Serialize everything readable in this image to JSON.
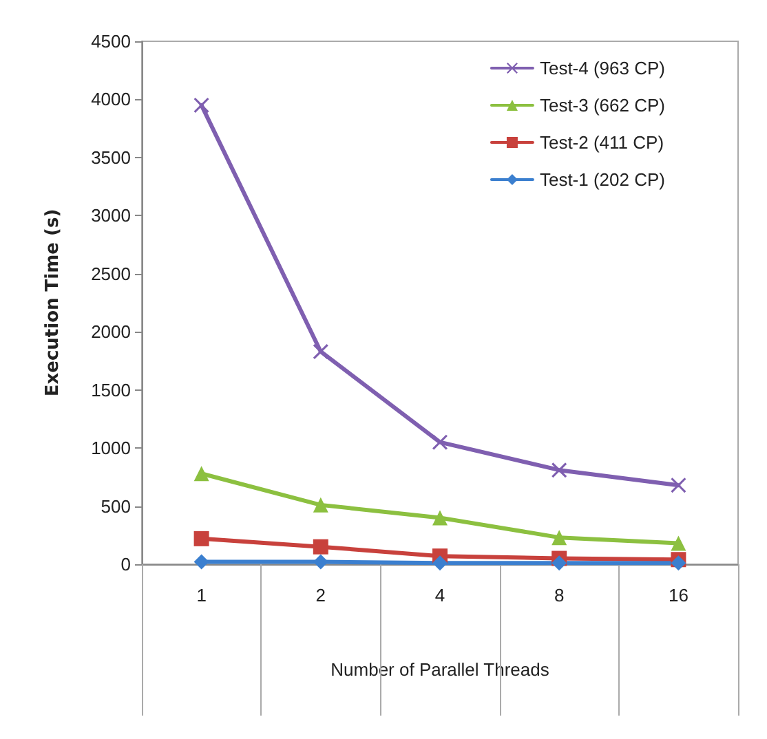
{
  "chart_data": {
    "type": "line",
    "xlabel": "Number of Parallel Threads",
    "ylabel": "Execution Time (s)",
    "categories": [
      "1",
      "2",
      "4",
      "8",
      "16"
    ],
    "ylim": [
      0,
      4500
    ],
    "yticks": [
      0,
      500,
      1000,
      1500,
      2000,
      2500,
      3000,
      3500,
      4000,
      4500
    ],
    "grid": false,
    "legend": "top right",
    "line_style": "solid",
    "series": [
      {
        "name": "Test-4 (963 CP)",
        "color": "#7f5fb0",
        "marker": "cross",
        "values": [
          3950,
          1830,
          1050,
          810,
          680
        ]
      },
      {
        "name": "Test-3 (662 CP)",
        "color": "#8cc040",
        "marker": "triangle",
        "values": [
          780,
          510,
          400,
          230,
          180
        ]
      },
      {
        "name": "Test-2 (411 CP)",
        "color": "#c8413c",
        "marker": "square",
        "values": [
          220,
          150,
          70,
          50,
          40
        ]
      },
      {
        "name": "Test-1 (202 CP)",
        "color": "#3b7fcf",
        "marker": "diamond",
        "values": [
          20,
          20,
          10,
          10,
          10
        ]
      }
    ]
  }
}
